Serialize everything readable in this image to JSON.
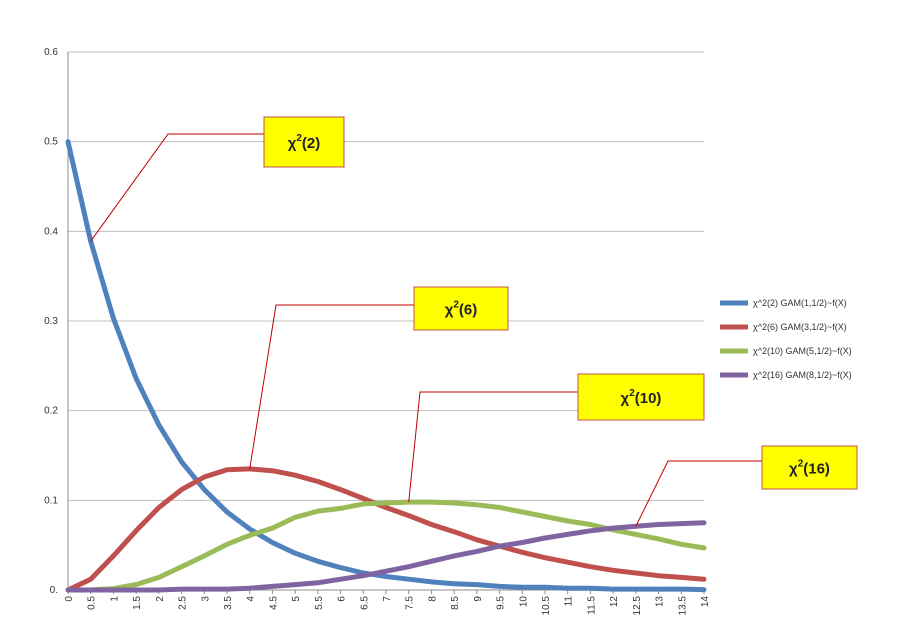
{
  "chart_data": {
    "type": "line",
    "title": "",
    "xlabel": "",
    "ylabel": "",
    "ylim": [
      0,
      0.6
    ],
    "y_ticks": [
      "0.",
      "0.1",
      "0.2",
      "0.3",
      "0.4",
      "0.5",
      "0.6"
    ],
    "y_tick_values": [
      0,
      0.1,
      0.2,
      0.3,
      0.4,
      0.5,
      0.6
    ],
    "grid": true,
    "legend_position": "right",
    "x": [
      "0",
      "0.5",
      "1",
      "1.5",
      "2",
      "2.5",
      "3",
      "3.5",
      "4",
      "4.5",
      "5",
      "5.5",
      "6",
      "6.5",
      "7",
      "7.5",
      "8",
      "8.5",
      "9",
      "9.5",
      "10",
      "10.5",
      "11",
      "11.5",
      "12",
      "12.5",
      "13",
      "13.5",
      "14"
    ],
    "series": [
      {
        "name": "χ^2(2) GAM(1,1/2)~f(X)",
        "color": "#4f81bd",
        "values": [
          0.5,
          0.389,
          0.303,
          0.236,
          0.184,
          0.143,
          0.112,
          0.087,
          0.068,
          0.053,
          0.041,
          0.032,
          0.025,
          0.019,
          0.015,
          0.012,
          0.009,
          0.007,
          0.006,
          0.004,
          0.003,
          0.003,
          0.002,
          0.002,
          0.001,
          0.001,
          0.001,
          0.001,
          0.0005
        ]
      },
      {
        "name": "χ^2(6) GAM(3,1/2)~f(X)",
        "color": "#c0504d",
        "values": [
          0,
          0.012,
          0.038,
          0.066,
          0.092,
          0.112,
          0.126,
          0.134,
          0.135,
          0.133,
          0.128,
          0.121,
          0.112,
          0.102,
          0.092,
          0.083,
          0.073,
          0.065,
          0.056,
          0.049,
          0.042,
          0.036,
          0.031,
          0.026,
          0.022,
          0.019,
          0.016,
          0.014,
          0.012
        ]
      },
      {
        "name": "χ^2(10) GAM(5,1/2)~f(X)",
        "color": "#9bbb59",
        "values": [
          0,
          0.0001,
          0.0016,
          0.006,
          0.014,
          0.026,
          0.038,
          0.051,
          0.061,
          0.069,
          0.081,
          0.088,
          0.091,
          0.096,
          0.097,
          0.098,
          0.098,
          0.097,
          0.095,
          0.092,
          0.087,
          0.082,
          0.077,
          0.073,
          0.067,
          0.062,
          0.057,
          0.051,
          0.047
        ]
      },
      {
        "name": "χ^2(16) GAM(8,1/2)~f(X)",
        "color": "#8064a2",
        "values": [
          0,
          0,
          0,
          0,
          0,
          0.001,
          0.001,
          0.001,
          0.002,
          0.004,
          0.006,
          0.008,
          0.012,
          0.016,
          0.021,
          0.026,
          0.032,
          0.038,
          0.043,
          0.049,
          0.053,
          0.058,
          0.062,
          0.066,
          0.069,
          0.071,
          0.073,
          0.074,
          0.075
        ]
      }
    ],
    "annotations": [
      {
        "label": "χ",
        "sup": "2",
        "arg": "(2)",
        "series_index": 0,
        "x_index": 1
      },
      {
        "label": "χ",
        "sup": "2",
        "arg": "(6)",
        "series_index": 1,
        "x_index": 8
      },
      {
        "label": "χ",
        "sup": "2",
        "arg": "(10)",
        "series_index": 2,
        "x_index": 15
      },
      {
        "label": "χ",
        "sup": "2",
        "arg": "(16)",
        "series_index": 3,
        "x_index": 25
      }
    ]
  }
}
